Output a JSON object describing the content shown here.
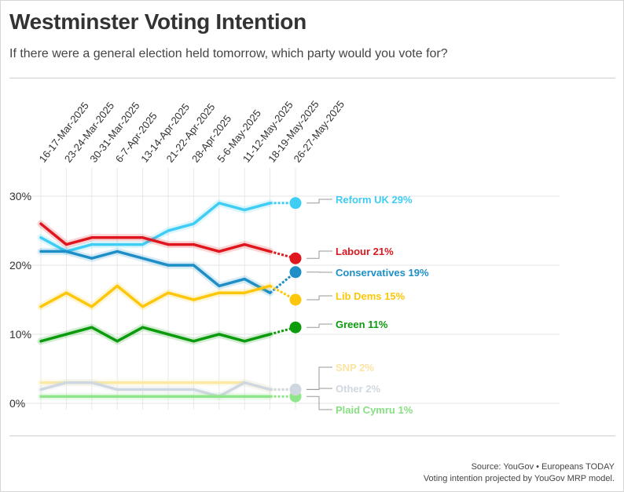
{
  "header": {
    "title": "Westminster Voting Intention",
    "subtitle": "If there were a general election held tomorrow, which party would you vote for?"
  },
  "footer": {
    "source": "Source: YouGov • Europeans TODAY",
    "note": "Voting intention projected by YouGov MRP model."
  },
  "chart_data": {
    "type": "line",
    "categories": [
      "16-17-Mar-2025",
      "23-24-Mar-2025",
      "30-31-Mar-2025",
      "6-7-Apr-2025",
      "13-14-Apr-2025",
      "21-22-Apr-2025",
      "28-Apr-2025",
      "5-6-May-2025",
      "11-12-May-2025",
      "18-19-May-2025",
      "26-27-May-2025"
    ],
    "ylim": [
      0,
      30
    ],
    "yticks": [
      0,
      10,
      20,
      30
    ],
    "ytick_labels": [
      "0%",
      "10%",
      "20%",
      "30%"
    ],
    "grid": true,
    "series": [
      {
        "name": "Reform UK",
        "label": "Reform UK 29%",
        "color": "#3fcdf4",
        "values": [
          24,
          22,
          23,
          23,
          23,
          25,
          26,
          29,
          28,
          29,
          29
        ]
      },
      {
        "name": "Labour",
        "label": "Labour 21%",
        "color": "#e0161e",
        "values": [
          26,
          23,
          24,
          24,
          24,
          23,
          23,
          22,
          23,
          22,
          21
        ]
      },
      {
        "name": "Conservatives",
        "label": "Conservatives 19%",
        "color": "#1d8fc6",
        "values": [
          22,
          22,
          21,
          22,
          21,
          20,
          20,
          17,
          18,
          16,
          19
        ]
      },
      {
        "name": "Lib Dems",
        "label": "Lib Dems 15%",
        "color": "#fcc70a",
        "values": [
          14,
          16,
          14,
          17,
          14,
          16,
          15,
          16,
          16,
          17,
          15
        ]
      },
      {
        "name": "Green",
        "label": "Green 11%",
        "color": "#0c9b0c",
        "values": [
          9,
          10,
          11,
          9,
          11,
          10,
          9,
          10,
          9,
          10,
          11
        ]
      },
      {
        "name": "SNP",
        "label": "SNP 2%",
        "color": "#fbe9a4",
        "values": [
          3,
          3,
          3,
          3,
          3,
          3,
          3,
          3,
          3,
          2,
          2
        ]
      },
      {
        "name": "Other",
        "label": "Other 2%",
        "color": "#cfd8e1",
        "values": [
          2,
          3,
          3,
          2,
          2,
          2,
          2,
          1,
          3,
          2,
          2
        ]
      },
      {
        "name": "Plaid Cymru",
        "label": "Plaid Cymru 1%",
        "color": "#8fe68a",
        "values": [
          1,
          1,
          1,
          1,
          1,
          1,
          1,
          1,
          1,
          1,
          1
        ]
      }
    ]
  }
}
